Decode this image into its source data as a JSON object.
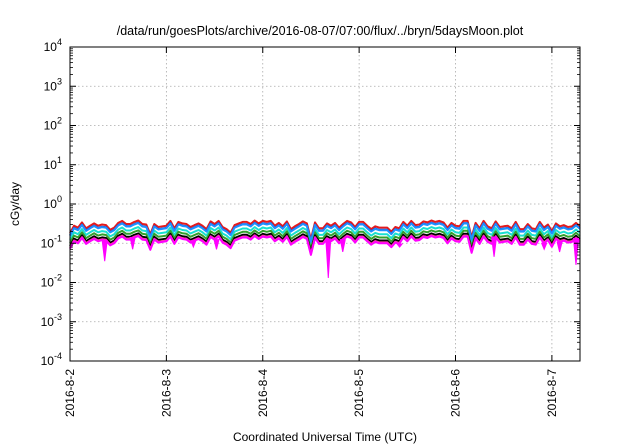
{
  "chart_data": {
    "type": "line",
    "title": "/data/run/goesPlots/archive/2016-08-07/07:00/flux/../bryn/5daysMoon.plot",
    "xlabel": "Coordinated Universal Time (UTC)",
    "ylabel": "cGy/day",
    "yscale": "log",
    "ylim": [
      0.0001,
      10000
    ],
    "xlim": [
      "2016-08-02 00:00",
      "2016-08-07 07:00"
    ],
    "x_ticks": [
      "2016-8-2",
      "2016-8-3",
      "2016-8-4",
      "2016-8-5",
      "2016-8-6",
      "2016-8-7"
    ],
    "y_ticks": [
      {
        "base": "10",
        "exp": "-4"
      },
      {
        "base": "10",
        "exp": "-3"
      },
      {
        "base": "10",
        "exp": "-2"
      },
      {
        "base": "10",
        "exp": "-1"
      },
      {
        "base": "10",
        "exp": "0"
      },
      {
        "base": "10",
        "exp": "1"
      },
      {
        "base": "10",
        "exp": "2"
      },
      {
        "base": "10",
        "exp": "3"
      },
      {
        "base": "10",
        "exp": "4"
      }
    ],
    "grid": true,
    "samples_per_day": 24,
    "baseline_series": [
      0.33,
      0.28,
      0.25,
      0.34,
      0.24,
      0.28,
      0.32,
      0.28,
      0.3,
      0.29,
      0.22,
      0.25,
      0.33,
      0.37,
      0.31,
      0.31,
      0.35,
      0.38,
      0.31,
      0.3,
      0.31,
      0.31,
      0.26,
      0.27,
      0.28,
      0.37,
      0.24,
      0.35,
      0.32,
      0.31,
      0.26,
      0.29,
      0.32,
      0.28,
      0.23,
      0.36,
      0.31,
      0.37,
      0.26,
      0.23,
      0.34,
      0.29,
      0.32,
      0.35,
      0.35,
      0.31,
      0.38,
      0.32,
      0.37,
      0.35,
      0.37,
      0.28,
      0.33,
      0.27,
      0.36,
      0.23,
      0.27,
      0.31,
      0.36,
      0.32,
      0.23,
      0.34,
      0.24,
      0.24,
      0.32,
      0.28,
      0.33,
      0.25,
      0.31,
      0.37,
      0.34,
      0.26,
      0.35,
      0.35,
      0.28,
      0.23,
      0.27,
      0.25,
      0.25,
      0.25,
      0.36,
      0.26,
      0.24,
      0.35,
      0.28,
      0.37,
      0.29,
      0.3,
      0.36,
      0.34,
      0.38,
      0.35,
      0.37,
      0.34,
      0.25,
      0.33,
      0.28,
      0.27,
      0.37,
      0.37,
      0.26,
      0.33,
      0.24,
      0.37,
      0.27,
      0.24,
      0.36,
      0.26,
      0.27,
      0.28,
      0.24,
      0.35,
      0.23,
      0.23,
      0.31,
      0.24,
      0.23,
      0.35,
      0.25,
      0.3,
      0.37,
      0.32,
      0.27,
      0.29,
      0.26,
      0.27,
      0.33,
      0.27
    ],
    "spikes_magenta": [
      {
        "day": 0.36,
        "value": 0.035
      },
      {
        "day": 0.65,
        "value": 0.07
      },
      {
        "day": 1.28,
        "value": 0.08
      },
      {
        "day": 1.52,
        "value": 0.07
      },
      {
        "day": 2.68,
        "value": 0.013
      },
      {
        "day": 2.83,
        "value": 0.06
      },
      {
        "day": 3.42,
        "value": 0.08
      },
      {
        "day": 4.4,
        "value": 0.045
      },
      {
        "day": 4.92,
        "value": 0.07
      },
      {
        "day": 5.25,
        "value": 0.028
      },
      {
        "day": 5.08,
        "value": 0.06
      }
    ],
    "series": [
      {
        "color": "#e41a1c",
        "scale": 1.0
      },
      {
        "color": "#1f3fcc",
        "scale": 0.88
      },
      {
        "color": "#19e0d0",
        "scale": 0.68
      },
      {
        "color": "#33a02c",
        "scale": 0.56
      },
      {
        "color": "#000000",
        "scale": 0.47
      },
      {
        "color": "#ff3fa0",
        "scale": 0.42
      },
      {
        "color": "#ff00ff",
        "scale": 0.4
      },
      {
        "color": "#1e90ff",
        "scale": 0.86
      }
    ]
  }
}
